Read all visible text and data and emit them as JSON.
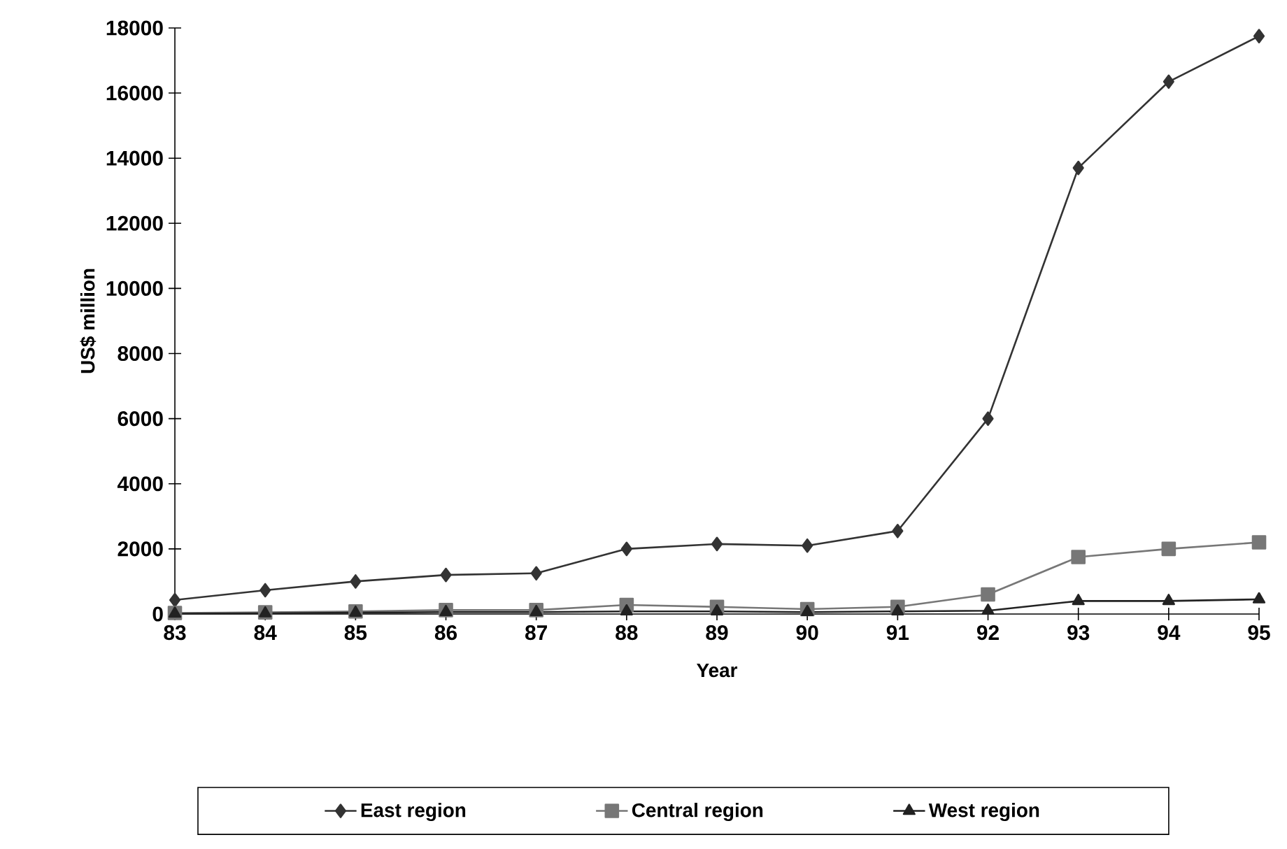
{
  "chart_data": {
    "type": "line",
    "xlabel": "Year",
    "ylabel": "US$ million",
    "categories": [
      "83",
      "84",
      "85",
      "86",
      "87",
      "88",
      "89",
      "90",
      "91",
      "92",
      "93",
      "94",
      "95"
    ],
    "series": [
      {
        "name": "East region",
        "color": "#333333",
        "marker": "diamond",
        "values": [
          430,
          730,
          1000,
          1200,
          1250,
          2000,
          2150,
          2100,
          2550,
          6000,
          13700,
          16350,
          17750
        ]
      },
      {
        "name": "Central region",
        "color": "#777777",
        "marker": "square",
        "values": [
          30,
          50,
          80,
          120,
          120,
          280,
          220,
          150,
          220,
          600,
          1750,
          2000,
          2200
        ]
      },
      {
        "name": "West region",
        "color": "#222222",
        "marker": "triangle",
        "values": [
          10,
          20,
          40,
          60,
          60,
          80,
          80,
          60,
          80,
          100,
          400,
          400,
          450
        ]
      }
    ],
    "ylim": [
      0,
      18000
    ],
    "yticks": [
      0,
      2000,
      4000,
      6000,
      8000,
      10000,
      12000,
      14000,
      16000,
      18000
    ],
    "grid": false,
    "legend": "bottom",
    "line_style": "solid"
  }
}
